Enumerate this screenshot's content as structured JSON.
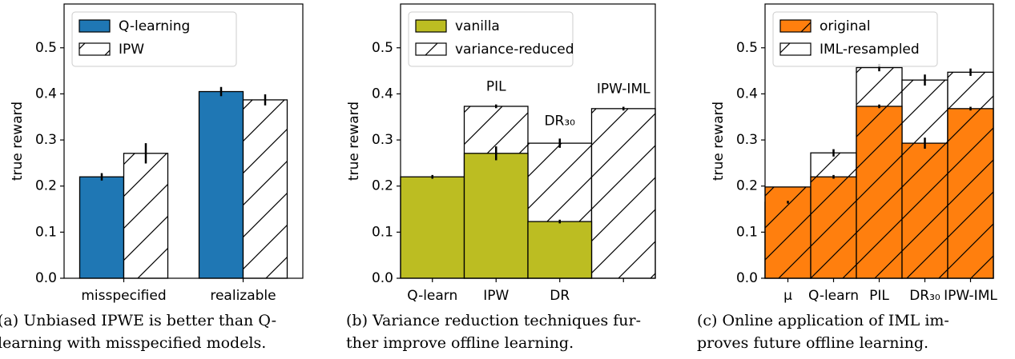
{
  "chart_data": [
    {
      "type": "bar",
      "bar_mode": "grouped",
      "ylabel": "true reward",
      "categories": [
        "misspecified",
        "realizable"
      ],
      "series": [
        {
          "name": "Q-learning",
          "color": "#1f77b4",
          "hatch": false,
          "values": [
            0.22,
            0.405
          ],
          "errors": [
            0.008,
            0.01
          ]
        },
        {
          "name": "IPW",
          "color": "#ffffff",
          "hatch": true,
          "values": [
            0.271,
            0.387
          ],
          "errors": [
            0.022,
            0.012
          ]
        }
      ],
      "ylim": [
        0,
        0.595
      ],
      "yticks": [
        {
          "value": 0,
          "label": "0.0"
        },
        0.1,
        0.2,
        0.3,
        0.4,
        0.5
      ],
      "legend": "upper left",
      "caption": [
        "(a) Unbiased IPWE is better than Q-",
        "learning with misspecified models."
      ]
    },
    {
      "type": "bar",
      "bar_mode": "overlay",
      "ylabel": "true reward",
      "categories": [
        "Q-learn",
        "IPW",
        "DR",
        null
      ],
      "series": [
        {
          "name": "vanilla",
          "color": "#bcbd22",
          "hatch": false,
          "values": [
            0.22,
            0.271,
            0.123,
            null
          ],
          "errors": [
            0.004,
            0.015,
            0.004,
            null
          ]
        },
        {
          "name": "variance-reduced",
          "color": "#ffffff",
          "hatch": true,
          "values": [
            null,
            0.373,
            0.293,
            0.368
          ],
          "errors": [
            null,
            0.004,
            0.01,
            0.004
          ]
        }
      ],
      "annotations": [
        "PIL",
        "DR₃₀",
        "IPW-IML"
      ],
      "ylim": [
        0,
        0.595
      ],
      "yticks": [
        {
          "value": 0,
          "label": "0.0"
        },
        0.1,
        0.2,
        0.3,
        0.4,
        0.5
      ],
      "legend": "upper left",
      "caption": [
        "(b) Variance reduction techniques fur-",
        "ther improve offline learning."
      ]
    },
    {
      "type": "bar",
      "bar_mode": "overlay",
      "ylabel": "true reward",
      "categories": [
        "μ",
        "Q-learn",
        "PIL",
        "DR₃₀",
        "IPW-IML"
      ],
      "series": [
        {
          "name": "original",
          "color": "#ff7f0e",
          "hatch": true,
          "values": [
            0.198,
            0.22,
            0.373,
            0.293,
            0.368
          ],
          "errors": [
            null,
            0.004,
            0.004,
            0.012,
            0.004
          ]
        },
        {
          "name": "IML-resampled",
          "color": "#ffffff",
          "hatch": true,
          "values": [
            0.165,
            0.272,
            0.457,
            0.43,
            0.447
          ],
          "errors": [
            0.003,
            0.008,
            0.008,
            0.012,
            0.008
          ]
        }
      ],
      "ylim": [
        0,
        0.595
      ],
      "yticks": [
        {
          "value": 0,
          "label": "0.0"
        },
        0.1,
        0.2,
        0.3,
        0.4,
        0.5
      ],
      "legend": "upper left",
      "caption": [
        "(c) Online application of IML im-",
        "proves future offline learning."
      ]
    }
  ]
}
